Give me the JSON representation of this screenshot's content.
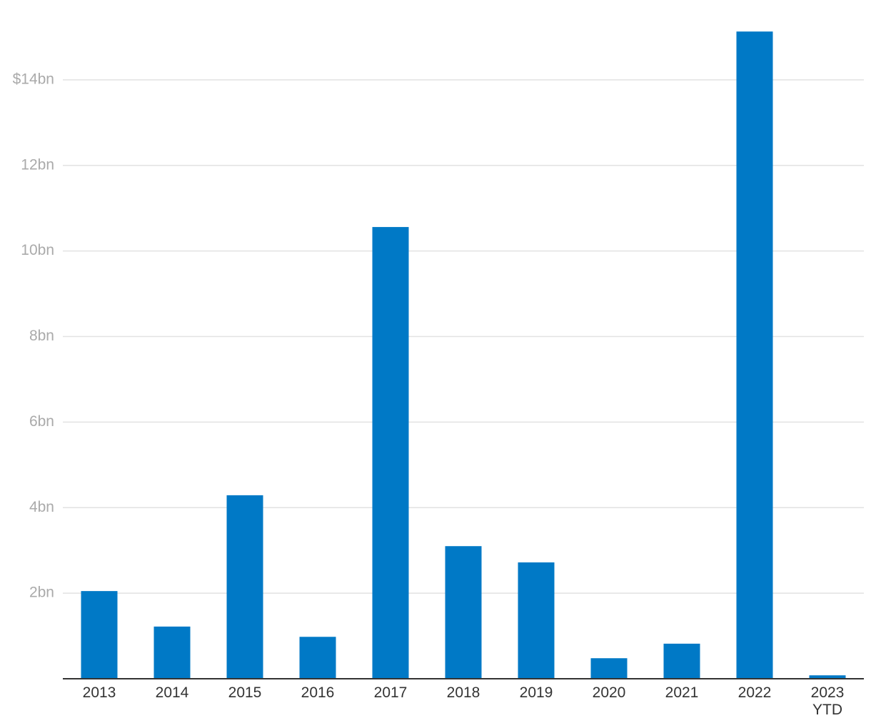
{
  "chart_data": {
    "type": "bar",
    "categories": [
      "2013",
      "2014",
      "2015",
      "2016",
      "2017",
      "2018",
      "2019",
      "2020",
      "2021",
      "2022",
      "2023\nYTD"
    ],
    "values": [
      2.05,
      1.22,
      4.29,
      0.98,
      10.56,
      3.1,
      2.72,
      0.48,
      0.82,
      15.13,
      0.08
    ],
    "color": "#0079c6",
    "ylim": [
      0,
      15.5
    ],
    "yticks": [
      {
        "value": 2,
        "label": "2bn"
      },
      {
        "value": 4,
        "label": "4bn"
      },
      {
        "value": 6,
        "label": "6bn"
      },
      {
        "value": 8,
        "label": "8bn"
      },
      {
        "value": 10,
        "label": "10bn"
      },
      {
        "value": 12,
        "label": "12bn"
      },
      {
        "value": 14,
        "label": "$14bn"
      }
    ],
    "grid": true
  }
}
